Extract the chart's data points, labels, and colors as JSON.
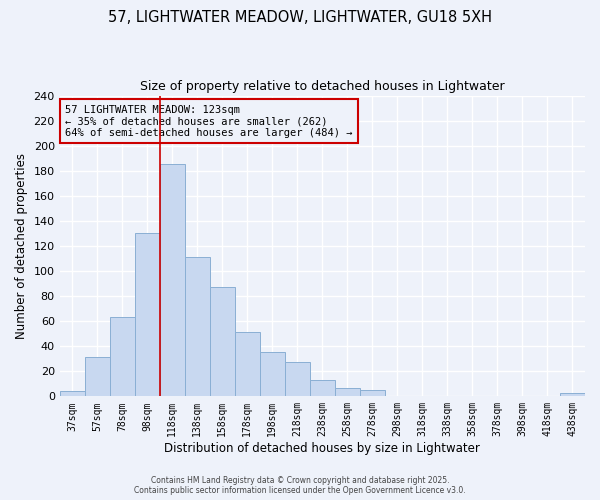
{
  "title1": "57, LIGHTWATER MEADOW, LIGHTWATER, GU18 5XH",
  "title2": "Size of property relative to detached houses in Lightwater",
  "xlabel": "Distribution of detached houses by size in Lightwater",
  "ylabel": "Number of detached properties",
  "bar_labels": [
    "37sqm",
    "57sqm",
    "78sqm",
    "98sqm",
    "118sqm",
    "138sqm",
    "158sqm",
    "178sqm",
    "198sqm",
    "218sqm",
    "238sqm",
    "258sqm",
    "278sqm",
    "298sqm",
    "318sqm",
    "338sqm",
    "358sqm",
    "378sqm",
    "398sqm",
    "418sqm",
    "438sqm"
  ],
  "bar_values": [
    4,
    31,
    63,
    130,
    185,
    111,
    87,
    51,
    35,
    27,
    13,
    7,
    5,
    0,
    0,
    0,
    0,
    0,
    0,
    0,
    3
  ],
  "bar_color": "#c8d8f0",
  "bar_edgecolor": "#8aafd4",
  "vline_color": "#cc0000",
  "annotation_title": "57 LIGHTWATER MEADOW: 123sqm",
  "annotation_line1": "← 35% of detached houses are smaller (262)",
  "annotation_line2": "64% of semi-detached houses are larger (484) →",
  "annotation_box_edgecolor": "#cc0000",
  "ylim": [
    0,
    240
  ],
  "yticks": [
    0,
    20,
    40,
    60,
    80,
    100,
    120,
    140,
    160,
    180,
    200,
    220,
    240
  ],
  "footer1": "Contains HM Land Registry data © Crown copyright and database right 2025.",
  "footer2": "Contains public sector information licensed under the Open Government Licence v3.0.",
  "bg_color": "#eef2fa",
  "grid_color": "#ffffff",
  "title1_fontsize": 10.5,
  "title2_fontsize": 9
}
